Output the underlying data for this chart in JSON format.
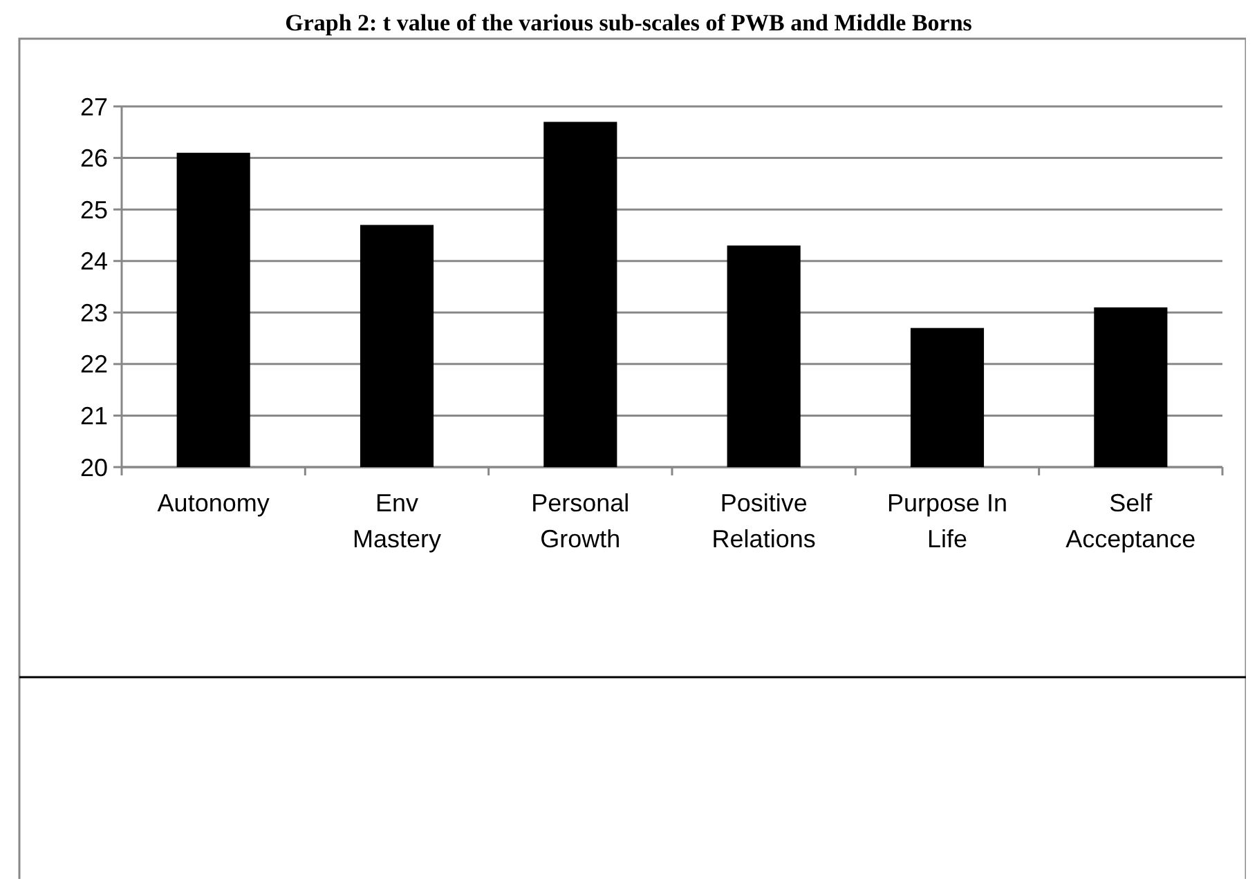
{
  "chart_data": {
    "type": "bar",
    "title": "Graph 2: t value of the various sub-scales of PWB and Middle Borns",
    "categories": [
      "Autonomy",
      "Env Mastery",
      "Personal Growth",
      "Positive Relations",
      "Purpose In Life",
      "Self Acceptance"
    ],
    "values": [
      26.1,
      24.7,
      26.7,
      24.3,
      22.7,
      23.1
    ],
    "color": "#000000",
    "ylim": [
      20,
      27
    ],
    "yticks": [
      20,
      21,
      22,
      23,
      24,
      25,
      26,
      27
    ],
    "grid": "y"
  }
}
